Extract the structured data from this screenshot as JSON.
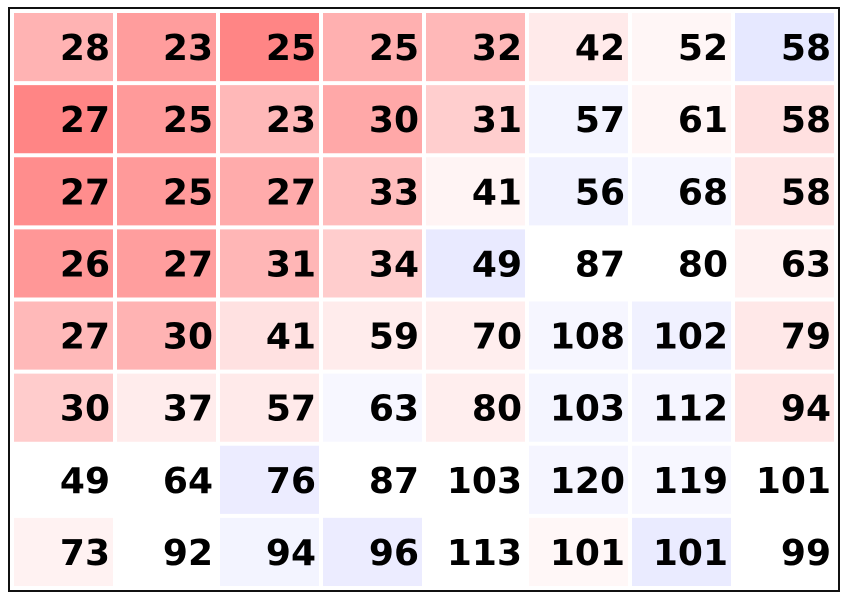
{
  "chart_data": {
    "type": "heatmap",
    "title": "",
    "xlabel": "",
    "ylabel": "",
    "values": [
      [
        28,
        23,
        25,
        25,
        32,
        42,
        52,
        58
      ],
      [
        27,
        25,
        23,
        30,
        31,
        57,
        61,
        58
      ],
      [
        27,
        25,
        27,
        33,
        41,
        56,
        68,
        58
      ],
      [
        26,
        27,
        31,
        34,
        49,
        87,
        80,
        63
      ],
      [
        27,
        30,
        41,
        59,
        70,
        108,
        102,
        79
      ],
      [
        30,
        37,
        57,
        63,
        80,
        103,
        112,
        94
      ],
      [
        49,
        64,
        76,
        87,
        103,
        120,
        119,
        101
      ],
      [
        73,
        92,
        94,
        96,
        113,
        101,
        101,
        99
      ]
    ],
    "cell_colors": [
      [
        "#ffb3b3",
        "#ff9d9d",
        "#ff8585",
        "#ffb0b0",
        "#ffb8b8",
        "#ffeaea",
        "#fff6f6",
        "#e6e8ff"
      ],
      [
        "#ff8585",
        "#ff9a9a",
        "#ffb8b8",
        "#ffa8a8",
        "#ffcece",
        "#f3f4ff",
        "#fff5f5",
        "#ffe0e0"
      ],
      [
        "#ff8d8d",
        "#ff9a9a",
        "#ffabab",
        "#ffbdbd",
        "#fff4f4",
        "#f1f2ff",
        "#f6f6ff",
        "#ffe6e6"
      ],
      [
        "#ff9797",
        "#ff9e9e",
        "#ffb6b6",
        "#ffcdcd",
        "#e9eaff",
        "#ffffff",
        "#ffffff",
        "#fff1f1"
      ],
      [
        "#ffb9b9",
        "#ffb3b3",
        "#ffe1e1",
        "#ffecec",
        "#ffeeee",
        "#f6f6ff",
        "#f0f1ff",
        "#ffe8e8"
      ],
      [
        "#ffcccc",
        "#ffecec",
        "#ffeaea",
        "#f7f7ff",
        "#ffeeee",
        "#f4f5ff",
        "#f5f5ff",
        "#ffe6e6"
      ],
      [
        "#ffffff",
        "#ffffff",
        "#ececff",
        "#ffffff",
        "#ffffff",
        "#f5f5ff",
        "#f7f7ff",
        "#ffffff"
      ],
      [
        "#fff2f2",
        "#ffffff",
        "#f3f4ff",
        "#ececff",
        "#ffffff",
        "#fff7f7",
        "#eaebff",
        "#ffffff"
      ]
    ],
    "grid": false
  }
}
